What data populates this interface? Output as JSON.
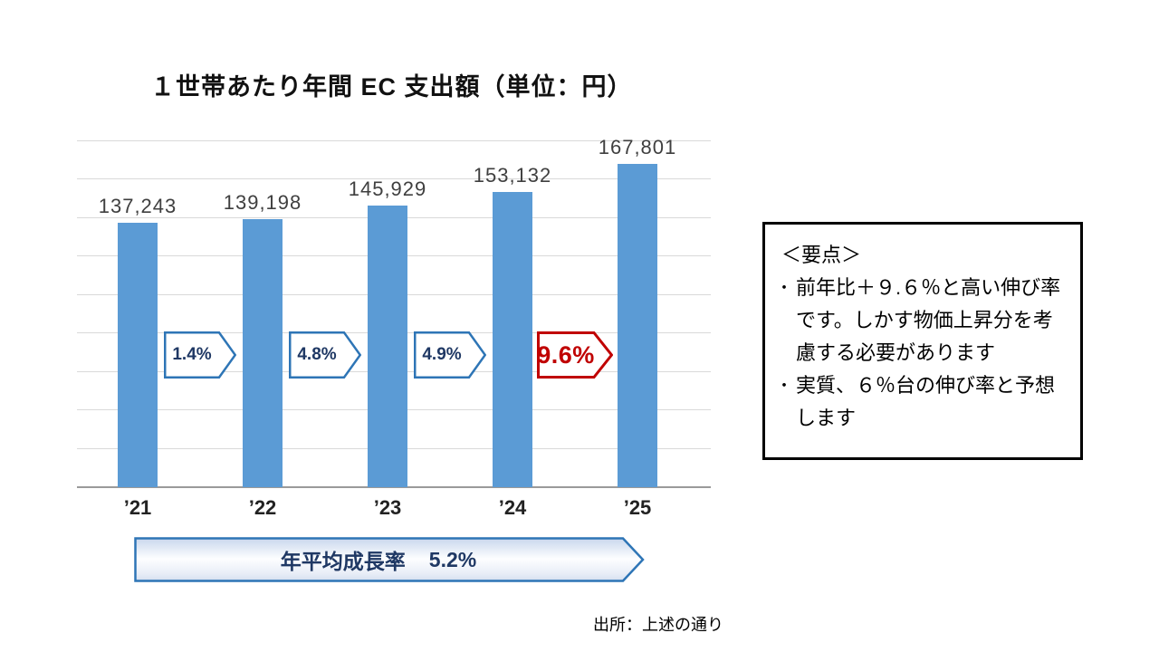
{
  "slide": {
    "title": "１世帯あたり年間 EC 支出額（単位：円）",
    "source_note": "出所：上述の通り"
  },
  "chart_data": {
    "type": "bar",
    "title": "１世帯あたり年間 EC 支出額（単位：円）",
    "unit": "円",
    "categories": [
      "’21",
      "’22",
      "’23",
      "’24",
      "’25"
    ],
    "values": [
      137243,
      139198,
      145929,
      153132,
      167801
    ],
    "value_labels": [
      "137,243",
      "139,198",
      "145,929",
      "153,132",
      "167,801"
    ],
    "ylim": [
      0,
      180000
    ],
    "gridline_interval": 20000,
    "grid": true,
    "legend": false,
    "bar_color": "#5B9BD5",
    "yoy_growth_arrows": [
      {
        "label": "1.4%",
        "style": "blue"
      },
      {
        "label": "4.8%",
        "style": "blue"
      },
      {
        "label": "4.9%",
        "style": "blue"
      },
      {
        "label": "9.6%",
        "style": "red"
      }
    ],
    "cagr_banner": {
      "label": "年平均成長率",
      "value": "5.2%"
    }
  },
  "key_points": {
    "title": "＜要点＞",
    "bullet_char": "・",
    "bullets": [
      "前年比＋９.６％と高い伸び率です。しかす物価上昇分を考慮する必要があります",
      "実質、６％台の伸び率と予想します"
    ]
  },
  "colors": {
    "bar": "#5B9BD5",
    "arrow_blue_border": "#2E75B6",
    "arrow_text_navy": "#1F3864",
    "arrow_red": "#C00000",
    "gridline": "#D9D9D9",
    "axis_line": "#9A9A9A",
    "value_label": "#3F3F3F"
  }
}
